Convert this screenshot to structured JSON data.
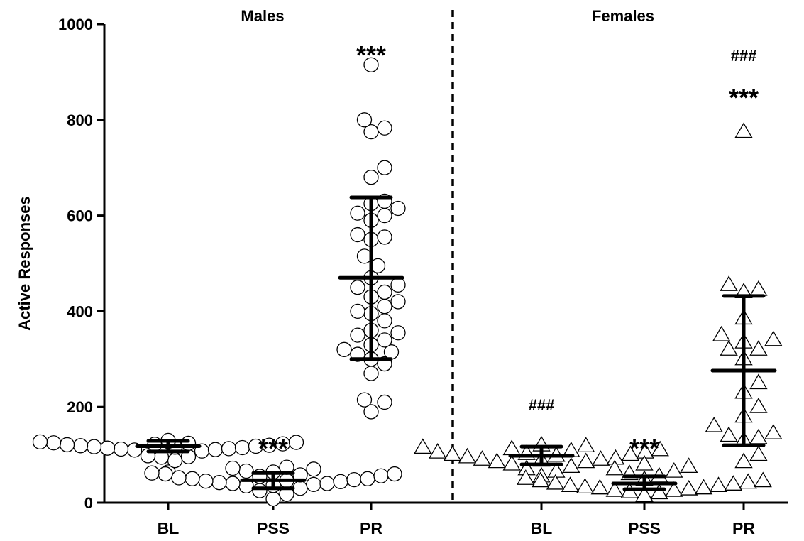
{
  "chart_data": {
    "type": "scatter",
    "ylabel": "Active Responses",
    "ylim": [
      0,
      1000
    ],
    "yticks": [
      "0",
      "200",
      "400",
      "600",
      "800",
      "1000"
    ],
    "grid": false,
    "panels": [
      {
        "title": "Males",
        "marker": "circle"
      },
      {
        "title": "Females",
        "marker": "triangle"
      }
    ],
    "groups": [
      {
        "panel": 0,
        "category": "BL",
        "mean": 118,
        "sd_low": 107,
        "sd_high": 129,
        "significance": "",
        "values": [
          120,
          118,
          122,
          116,
          125,
          110,
          113,
          128,
          130,
          119,
          121,
          117,
          124,
          112,
          108,
          126,
          123,
          115,
          114,
          127,
          111,
          95,
          96,
          98,
          88,
          64
        ]
      },
      {
        "panel": 0,
        "category": "PSS",
        "mean": 47,
        "sd_low": 30,
        "sd_high": 62,
        "significance": "***",
        "values": [
          8,
          18,
          25,
          30,
          35,
          38,
          40,
          42,
          44,
          46,
          48,
          50,
          52,
          55,
          58,
          60,
          62,
          64,
          66,
          70,
          72,
          74,
          40,
          50,
          56,
          36,
          45,
          60
        ]
      },
      {
        "panel": 0,
        "category": "PR",
        "mean": 470,
        "sd_low": 300,
        "sd_high": 638,
        "significance": "***",
        "values": [
          190,
          210,
          215,
          270,
          290,
          300,
          310,
          315,
          320,
          330,
          340,
          350,
          355,
          360,
          380,
          395,
          400,
          410,
          420,
          430,
          440,
          450,
          455,
          470,
          495,
          515,
          550,
          555,
          560,
          590,
          600,
          605,
          615,
          625,
          630,
          680,
          700,
          775,
          783,
          800,
          915
        ]
      },
      {
        "panel": 1,
        "category": "BL",
        "mean": 98,
        "sd_low": 80,
        "sd_high": 117,
        "significance": "###",
        "values": [
          55,
          65,
          70,
          75,
          80,
          85,
          88,
          90,
          92,
          95,
          98,
          100,
          102,
          105,
          108,
          110,
          112,
          115,
          118,
          120,
          100,
          90,
          85,
          105
        ]
      },
      {
        "panel": 1,
        "category": "PSS",
        "mean": 40,
        "sd_low": 28,
        "sd_high": 55,
        "significance": "***",
        "values": [
          15,
          20,
          22,
          25,
          28,
          30,
          32,
          35,
          38,
          40,
          42,
          45,
          48,
          50,
          55,
          60,
          65,
          70,
          75,
          80,
          25,
          35,
          45,
          30
        ]
      },
      {
        "panel": 1,
        "category": "PR",
        "mean": 276,
        "sd_low": 120,
        "sd_high": 432,
        "significance": "### ***",
        "values": [
          85,
          100,
          130,
          135,
          140,
          145,
          160,
          180,
          200,
          230,
          250,
          300,
          320,
          320,
          335,
          340,
          350,
          385,
          440,
          445,
          455,
          775
        ]
      }
    ]
  }
}
